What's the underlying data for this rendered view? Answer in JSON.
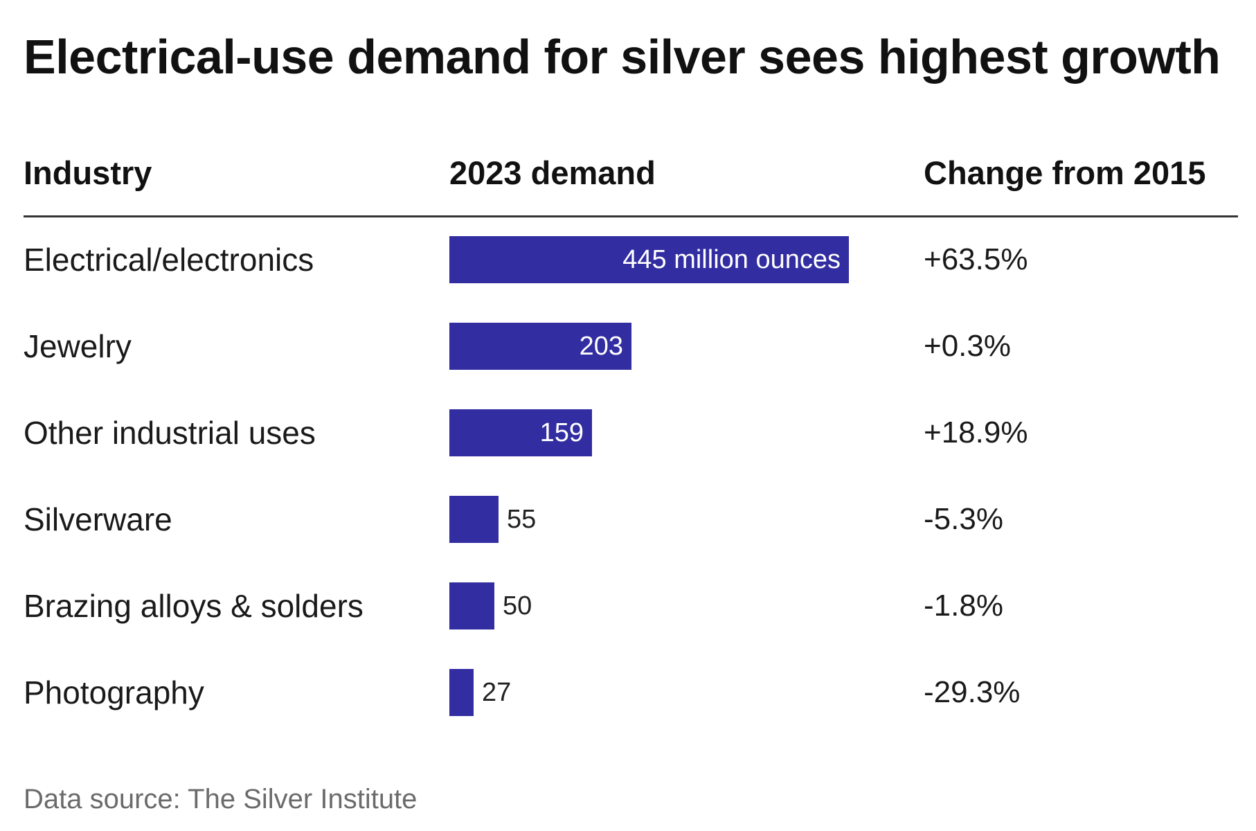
{
  "title": "Electrical-use demand for silver sees highest growth",
  "columns": {
    "industry": "Industry",
    "demand": "2023 demand",
    "change": "Change from 2015"
  },
  "source": "Data source: The Silver Institute",
  "colors": {
    "bar": "#322da1",
    "rule": "#333333",
    "source_text": "#6b6b6b"
  },
  "chart_data": {
    "type": "bar",
    "orientation": "horizontal",
    "title": "Electrical-use demand for silver sees highest growth",
    "xlabel": "2023 demand",
    "ylabel": "Industry",
    "unit_text": "million ounces",
    "xlim": [
      0,
      445
    ],
    "grid": false,
    "categories": [
      "Electrical/electronics",
      "Jewelry",
      "Other industrial uses",
      "Silverware",
      "Brazing alloys & solders",
      "Photography"
    ],
    "values": [
      445,
      203,
      159,
      55,
      50,
      27
    ],
    "value_labels": [
      "445 million ounces",
      "203",
      "159",
      "55",
      "50",
      "27"
    ],
    "change_from_2015": [
      "+63.5%",
      "+0.3%",
      "+18.9%",
      "-5.3%",
      "-1.8%",
      "-29.3%"
    ],
    "source": "Data source: The Silver Institute"
  }
}
